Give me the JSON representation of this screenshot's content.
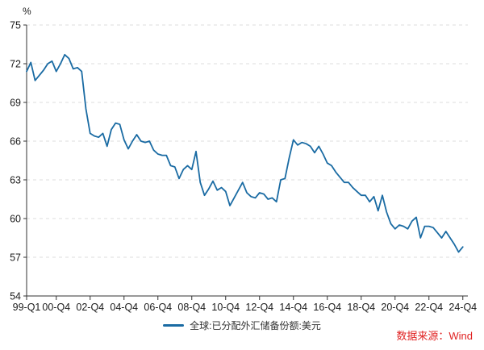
{
  "chart_data": {
    "type": "line",
    "title": "",
    "unit_label": "%",
    "xlabel": "",
    "ylabel": "%",
    "ylim": [
      54,
      75
    ],
    "yticks": [
      54,
      57,
      60,
      63,
      66,
      69,
      72,
      75
    ],
    "xtick_labels": [
      "99-Q1",
      "00-Q4",
      "02-Q4",
      "04-Q4",
      "06-Q4",
      "08-Q4",
      "10-Q4",
      "12-Q4",
      "14-Q4",
      "16-Q4",
      "18-Q4",
      "20-Q4",
      "22-Q4",
      "24-Q4"
    ],
    "xtick_indices": [
      0,
      7,
      15,
      23,
      31,
      39,
      47,
      55,
      63,
      71,
      79,
      87,
      95,
      103
    ],
    "grid": "dashed-horizontal",
    "legend_position": "bottom-center",
    "colors": {
      "line": "#1a6ba3",
      "grid": "#dcdcdc",
      "axis": "#333333",
      "tick_label": "#1a1a1a"
    },
    "series": [
      {
        "name": "全球:已分配外汇储备份额:美元",
        "x": [
          "99-Q1",
          "99-Q2",
          "99-Q3",
          "99-Q4",
          "00-Q1",
          "00-Q2",
          "00-Q3",
          "00-Q4",
          "01-Q1",
          "01-Q2",
          "01-Q3",
          "01-Q4",
          "02-Q1",
          "02-Q2",
          "02-Q3",
          "02-Q4",
          "03-Q1",
          "03-Q2",
          "03-Q3",
          "03-Q4",
          "04-Q1",
          "04-Q2",
          "04-Q3",
          "04-Q4",
          "05-Q1",
          "05-Q2",
          "05-Q3",
          "05-Q4",
          "06-Q1",
          "06-Q2",
          "06-Q3",
          "06-Q4",
          "07-Q1",
          "07-Q2",
          "07-Q3",
          "07-Q4",
          "08-Q1",
          "08-Q2",
          "08-Q3",
          "08-Q4",
          "09-Q1",
          "09-Q2",
          "09-Q3",
          "09-Q4",
          "10-Q1",
          "10-Q2",
          "10-Q3",
          "10-Q4",
          "11-Q1",
          "11-Q2",
          "11-Q3",
          "11-Q4",
          "12-Q1",
          "12-Q2",
          "12-Q3",
          "12-Q4",
          "13-Q1",
          "13-Q2",
          "13-Q3",
          "13-Q4",
          "14-Q1",
          "14-Q2",
          "14-Q3",
          "14-Q4",
          "15-Q1",
          "15-Q2",
          "15-Q3",
          "15-Q4",
          "16-Q1",
          "16-Q2",
          "16-Q3",
          "16-Q4",
          "17-Q1",
          "17-Q2",
          "17-Q3",
          "17-Q4",
          "18-Q1",
          "18-Q2",
          "18-Q3",
          "18-Q4",
          "19-Q1",
          "19-Q2",
          "19-Q3",
          "19-Q4",
          "20-Q1",
          "20-Q2",
          "20-Q3",
          "20-Q4",
          "21-Q1",
          "21-Q2",
          "21-Q3",
          "21-Q4",
          "22-Q1",
          "22-Q2",
          "22-Q3",
          "22-Q4",
          "23-Q1",
          "23-Q2",
          "23-Q3",
          "23-Q4",
          "24-Q1",
          "24-Q2",
          "24-Q3",
          "24-Q4"
        ],
        "values": [
          71.4,
          72.1,
          70.7,
          71.1,
          71.5,
          72.0,
          72.2,
          71.4,
          72.0,
          72.7,
          72.4,
          71.6,
          71.7,
          71.4,
          68.5,
          66.6,
          66.4,
          66.3,
          66.6,
          65.6,
          66.9,
          67.4,
          67.3,
          66.1,
          65.4,
          66.0,
          66.5,
          66.0,
          65.9,
          66.0,
          65.3,
          65.0,
          64.9,
          64.9,
          64.1,
          64.0,
          63.1,
          63.8,
          64.1,
          63.8,
          65.2,
          62.8,
          61.8,
          62.3,
          62.9,
          62.2,
          62.4,
          62.1,
          61.0,
          61.6,
          62.2,
          62.8,
          62.0,
          61.7,
          61.6,
          62.0,
          61.9,
          61.5,
          61.6,
          61.3,
          63.0,
          63.1,
          64.7,
          66.1,
          65.7,
          65.9,
          65.8,
          65.6,
          65.1,
          65.6,
          65.0,
          64.3,
          64.1,
          63.6,
          63.2,
          62.8,
          62.8,
          62.4,
          62.1,
          61.8,
          61.8,
          61.3,
          61.7,
          60.6,
          61.8,
          60.5,
          59.6,
          59.2,
          59.5,
          59.4,
          59.2,
          59.8,
          60.1,
          58.5,
          59.4,
          59.4,
          59.3,
          58.9,
          58.5,
          59.0,
          58.5,
          58.0,
          57.4,
          57.8
        ]
      }
    ]
  },
  "legend": {
    "label": "全球:已分配外汇储备份额:美元"
  },
  "source": {
    "text": "数据来源：Wind",
    "color": "#e02222"
  }
}
